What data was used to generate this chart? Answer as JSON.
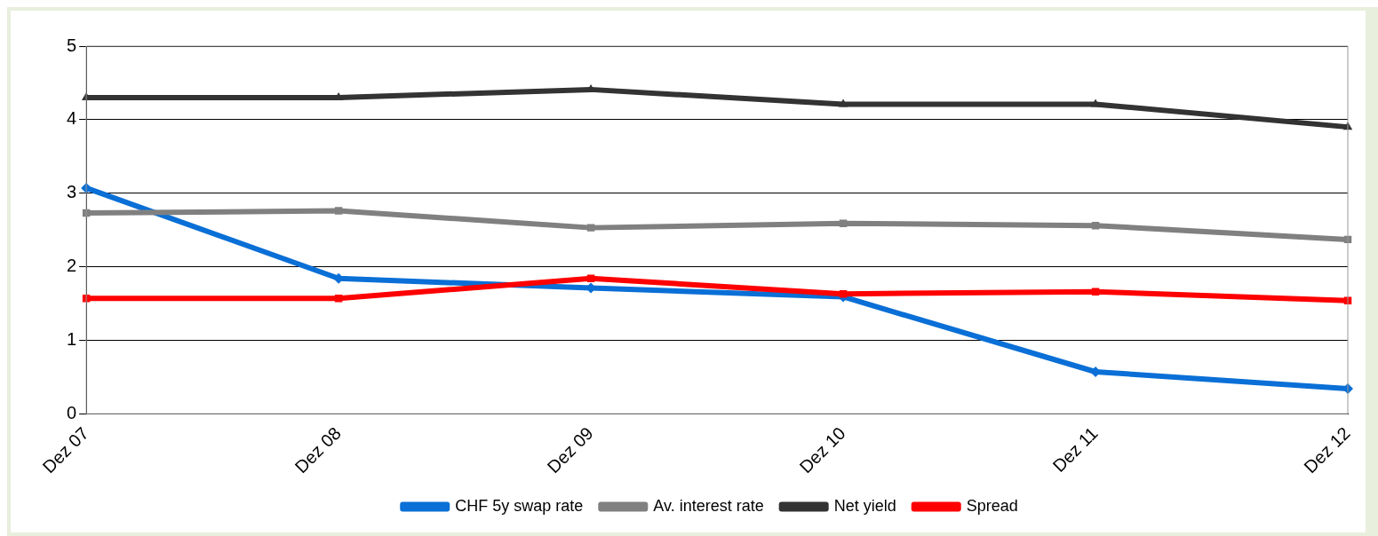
{
  "chart_data": {
    "type": "line",
    "categories": [
      "Dez 07",
      "Dez 08",
      "Dez 09",
      "Dez 10",
      "Dez 11",
      "Dez 12"
    ],
    "series": [
      {
        "name": "CHF 5y swap rate",
        "color": "#0a6fd6",
        "marker": "diamond",
        "values": [
          3.07,
          1.84,
          1.71,
          1.59,
          0.57,
          0.34
        ]
      },
      {
        "name": "Av. interest rate",
        "color": "#808080",
        "marker": "square",
        "values": [
          2.73,
          2.76,
          2.53,
          2.59,
          2.56,
          2.37
        ]
      },
      {
        "name": "Net yield",
        "color": "#333333",
        "marker": "triangle",
        "values": [
          4.3,
          4.3,
          4.41,
          4.21,
          4.21,
          3.9
        ]
      },
      {
        "name": "Spread",
        "color": "#ff0000",
        "marker": "square",
        "values": [
          1.57,
          1.57,
          1.84,
          1.63,
          1.66,
          1.54
        ]
      }
    ],
    "ylim": [
      0,
      5
    ],
    "yticks": [
      0,
      1,
      2,
      3,
      4,
      5
    ],
    "grid": "y",
    "legend": "bottom",
    "line_style": "solid"
  }
}
